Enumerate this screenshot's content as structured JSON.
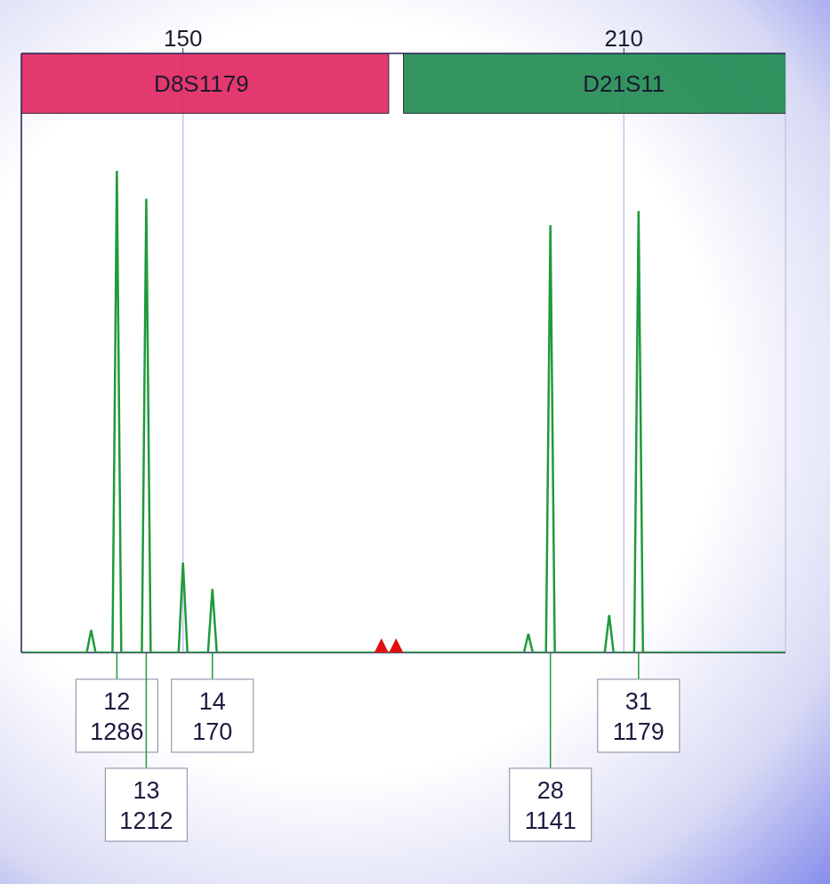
{
  "chart_data": {
    "type": "line",
    "color": "#1f9a3c",
    "grid": true,
    "tick_labels": "x",
    "xlim": [
      128,
      232
    ],
    "xticks": [
      150,
      210
    ],
    "ylim": [
      0,
      1600
    ],
    "x": [
      128,
      136.9,
      137.5,
      138.1,
      140.4,
      141,
      141.6,
      144.4,
      145,
      145.6,
      149.4,
      150,
      150.6,
      153.4,
      154,
      154.6,
      196.4,
      197,
      197.6,
      199.4,
      200,
      200.6,
      207.4,
      208,
      208.6,
      211.4,
      212,
      212.6,
      232
    ],
    "values": [
      0,
      0,
      60,
      0,
      0,
      1286,
      0,
      0,
      1212,
      0,
      0,
      240,
      0,
      0,
      170,
      0,
      0,
      50,
      0,
      0,
      1141,
      0,
      0,
      100,
      0,
      0,
      1179,
      0,
      0
    ],
    "loci": [
      {
        "name": "D8S1179",
        "start": 127,
        "end": 178,
        "color": "#e0245e"
      },
      {
        "name": "D21S11",
        "start": 180,
        "end": 240,
        "color": "#1e8a50"
      }
    ],
    "peak_labels": [
      {
        "x": 141,
        "allele": "12",
        "height": 1286
      },
      {
        "x": 145,
        "allele": "13",
        "height": 1212
      },
      {
        "x": 154,
        "allele": "14",
        "height": 170
      },
      {
        "x": 200,
        "allele": "28",
        "height": 1141
      },
      {
        "x": 212,
        "allele": "31",
        "height": 1179
      }
    ],
    "markers": [
      177,
      179
    ],
    "marker_color": "#e01010"
  }
}
